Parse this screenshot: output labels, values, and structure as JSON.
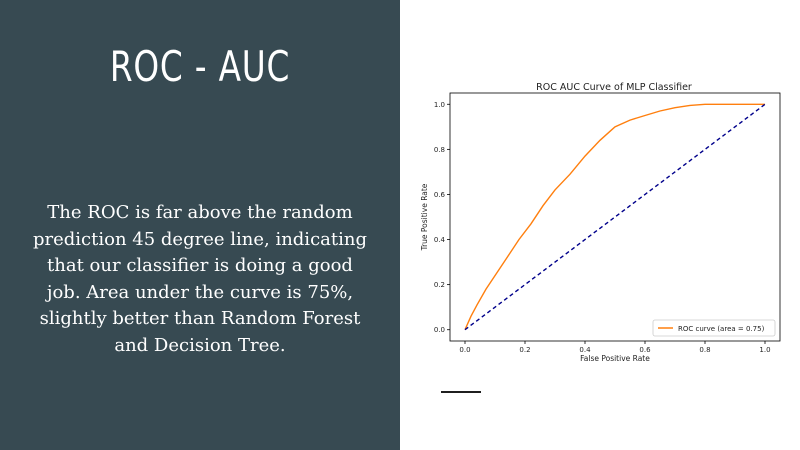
{
  "slide": {
    "title": "ROC - AUC",
    "body": "The ROC is far above the random prediction 45 degree line, indicating that our classifier is doing a good job. Area under the curve is 75%, slightly better than Random Forest and Decision Tree.",
    "left_bg": "#374a52"
  },
  "chart_data": {
    "type": "line",
    "title": "ROC AUC Curve of MLP Classifier",
    "xlabel": "False Positive Rate",
    "ylabel": "True Positive Rate",
    "xlim": [
      -0.05,
      1.05
    ],
    "ylim": [
      -0.05,
      1.05
    ],
    "xticks": [
      "0.0",
      "0.2",
      "0.4",
      "0.6",
      "0.8",
      "1.0"
    ],
    "yticks": [
      "0.0",
      "0.2",
      "0.4",
      "0.6",
      "0.8",
      "1.0"
    ],
    "grid": false,
    "legend_position": "lower-right",
    "series": [
      {
        "name": "ROC curve (area = 0.75)",
        "color": "#ff7f0e",
        "style": "solid",
        "x": [
          0.0,
          0.02,
          0.04,
          0.07,
          0.1,
          0.14,
          0.18,
          0.22,
          0.26,
          0.3,
          0.35,
          0.4,
          0.45,
          0.5,
          0.55,
          0.6,
          0.65,
          0.7,
          0.75,
          0.8,
          0.9,
          1.0
        ],
        "y": [
          0.0,
          0.06,
          0.11,
          0.18,
          0.24,
          0.32,
          0.4,
          0.47,
          0.55,
          0.62,
          0.69,
          0.77,
          0.84,
          0.9,
          0.93,
          0.95,
          0.97,
          0.985,
          0.995,
          1.0,
          1.0,
          1.0
        ]
      },
      {
        "name": "",
        "color": "#00008b",
        "style": "dashed",
        "x": [
          0,
          1
        ],
        "y": [
          0,
          1
        ]
      }
    ]
  }
}
